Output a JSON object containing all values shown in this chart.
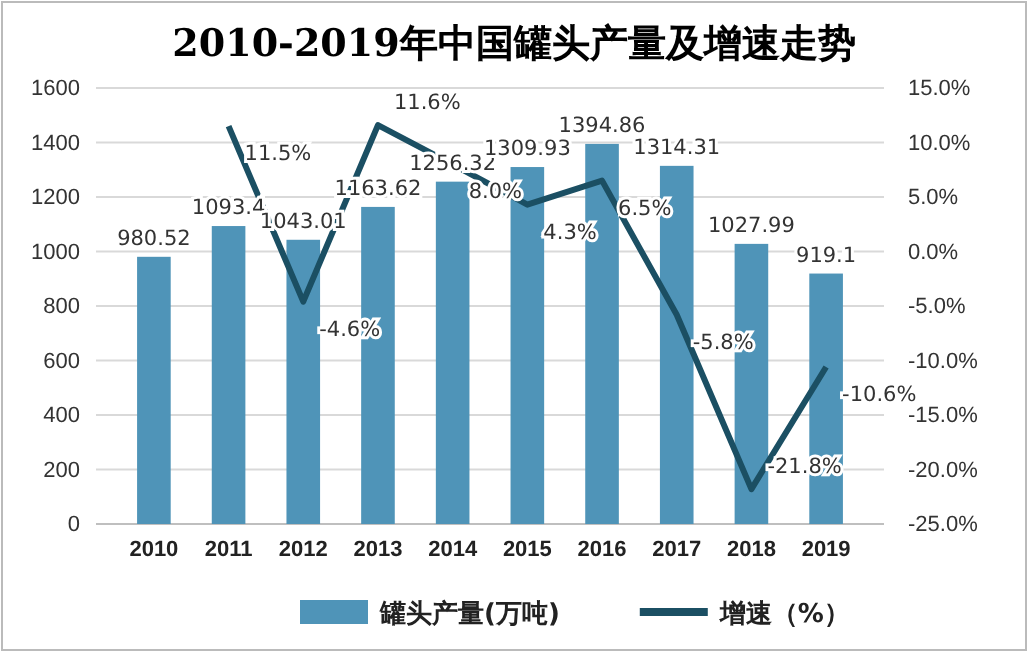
{
  "chart_data": {
    "type": "bar",
    "title": "2010-2019年中国罐头产量及增速走势",
    "categories": [
      "2010",
      "2011",
      "2012",
      "2013",
      "2014",
      "2015",
      "2016",
      "2017",
      "2018",
      "2019"
    ],
    "series": [
      {
        "name": "罐头产量(万吨)",
        "color": "#4f94b8",
        "values": [
          980.52,
          1093.4,
          1043.01,
          1163.62,
          1256.32,
          1309.93,
          1394.86,
          1314.31,
          1027.99,
          919.1
        ],
        "value_labels": [
          "980.52",
          "1093.4",
          "1043.01",
          "1163.62",
          "1256.32",
          "1309.93",
          "1394.86",
          "1314.31",
          "1027.99",
          "919.1"
        ]
      },
      {
        "name": "增速（%）",
        "type": "line",
        "axis": "y2",
        "color": "#1b4f63",
        "values": [
          null,
          11.5,
          -4.6,
          11.6,
          8.0,
          4.3,
          6.5,
          -5.8,
          -21.8,
          -10.6
        ],
        "value_labels": [
          null,
          "11.5%",
          "-4.6%",
          "11.6%",
          "8.0%",
          "4.3%",
          "6.5%",
          "-5.8%",
          "-21.8%",
          "-10.6%"
        ]
      }
    ],
    "ylim": [
      0,
      1600
    ],
    "yticks": [
      0,
      200,
      400,
      600,
      800,
      1000,
      1200,
      1400,
      1600
    ],
    "y2lim": [
      -25,
      15
    ],
    "y2ticks": [
      {
        "value": -25,
        "label": "-25.0%"
      },
      {
        "value": -20,
        "label": "-20.0%"
      },
      {
        "value": -15,
        "label": "-15.0%"
      },
      {
        "value": -10,
        "label": "-10.0%"
      },
      {
        "value": -5,
        "label": "-5.0%"
      },
      {
        "value": 0,
        "label": "0.0%"
      },
      {
        "value": 5,
        "label": "5.0%"
      },
      {
        "value": 10,
        "label": "10.0%"
      },
      {
        "value": 15,
        "label": "15.0%"
      }
    ],
    "grid": "y",
    "legend": "bottom",
    "marker": "none",
    "line_style": "solid"
  }
}
